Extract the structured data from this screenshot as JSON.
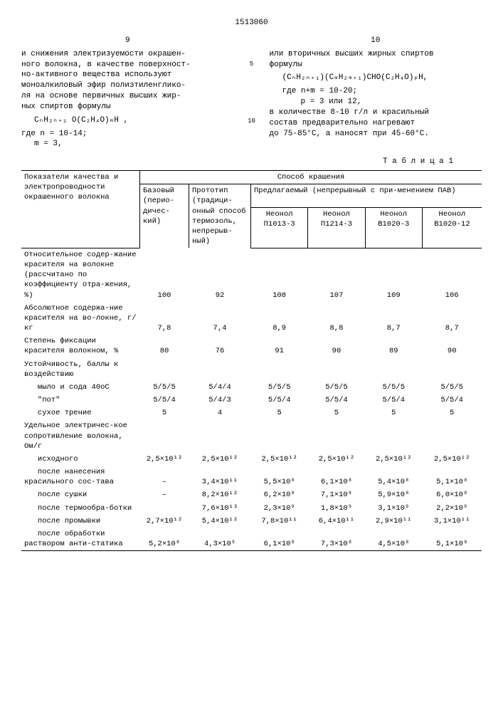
{
  "doc_number": "1513060",
  "left_colnum": "9",
  "right_colnum": "10",
  "marker5": "5",
  "marker10": "10",
  "left_text": {
    "p1": "и снижения электризуемости окрашен-",
    "p2": "ного волокна, в качестве поверхност-",
    "p3": "но-активного вещества используют",
    "p4": "моноалкиловый эфир полиэтиленглико-",
    "p5": "ля на основе первичных высших жир-",
    "p6": "ных спиртов формулы",
    "formula": "CₙH₂ₙ₊₁ O(C₂H₄O)ₘH ,",
    "where1": "где n = 10-14;",
    "where2": "m = 3,"
  },
  "right_text": {
    "p1": "или вторичных высших жирных спиртов",
    "p2": "формулы",
    "formula": "(CₙH₂ₙ₊₁)(CₘH₂ₘ₊₁)CHO(C₂H₄O)ₚH,",
    "where1": "где n+m = 10-20;",
    "where2": "p = 3 или 12,",
    "p3": "в количестве 8-10 г/л и красильный",
    "p4": "состав предварительно нагревают",
    "p5": "до 75-85°C, а наносят при 45-60°C."
  },
  "table_caption": "Т а б л и ц а  1",
  "headers": {
    "param": "Показатели качества и электропроводности окрашенного волокна",
    "method": "Способ крашения",
    "base": "Базовый (перио-дичес-кий)",
    "proto": "Прототип (традици-онный способ термозоль, непрерыв-ный)",
    "proposed": "Предлагаемый (непрерывный с при-менением ПАВ)",
    "c1": "Неонол П1013-3",
    "c2": "Неонол П1214-3",
    "c3": "Неонол В1020-3",
    "c4": "Неонол В1020-12"
  },
  "rows": [
    {
      "label": "Относительное содер-жание красителя на волокне (рассчитано по коэффициенту отра-жения, %)",
      "v": [
        "100",
        "92",
        "108",
        "107",
        "109",
        "106"
      ]
    },
    {
      "label": "Абсолютное содержа-ние красителя на во-локне, г/кг",
      "v": [
        "7,8",
        "7,4",
        "8,9",
        "8,8",
        "8,7",
        "8,7"
      ]
    },
    {
      "label": "Степень фиксации красителя волокном, %",
      "v": [
        "80",
        "76",
        "91",
        "90",
        "89",
        "90"
      ]
    },
    {
      "label": "Устойчивость, баллы к воздействию",
      "v": [
        "",
        "",
        "",
        "",
        "",
        ""
      ]
    },
    {
      "label": "   мыло и сода 40оС",
      "v": [
        "5/5/5",
        "5/4/4",
        "5/5/5",
        "5/5/5",
        "5/5/5",
        "5/5/5"
      ]
    },
    {
      "label": "   \"пот\"",
      "v": [
        "5/5/4",
        "5/4/3",
        "5/5/4",
        "5/5/4",
        "5/5/4",
        "5/5/4"
      ]
    },
    {
      "label": "   сухое трение",
      "v": [
        "5",
        "4",
        "5",
        "5",
        "5",
        "5"
      ]
    },
    {
      "label": "Удельное электричес-кое сопротивление волокна, Ом/г",
      "v": [
        "",
        "",
        "",
        "",
        "",
        ""
      ]
    },
    {
      "label": "   исходного",
      "v": [
        "2,5×10¹²",
        "2,5×10¹²",
        "2,5×10¹²",
        "2,5×10¹²",
        "2,5×10¹²",
        "2,5×10¹²"
      ]
    },
    {
      "label": "   после нанесения красильного сос-тава",
      "v": [
        "–",
        "3,4×10¹¹",
        "5,5×10⁸",
        "6,1×10⁸",
        "5,4×10⁸",
        "5,1×10⁸"
      ]
    },
    {
      "label": "   после сушки",
      "v": [
        "–",
        "8,2×10¹²",
        "6,2×10⁸",
        "7,1×10⁸",
        "5,9×10⁸",
        "6,0×10⁸"
      ]
    },
    {
      "label": "   после термообра-ботки",
      "v": [
        "",
        "7,6×10¹³",
        "2,3×10⁹",
        "1,8×10⁹",
        "3,1×10⁹",
        "2,2×10⁹"
      ]
    },
    {
      "label": "   после промывки",
      "v": [
        "2,7×10¹²",
        "5,4×10¹²",
        "7,8×10¹¹",
        "6,4×10¹¹",
        "2,9×10¹¹",
        "3,1×10¹¹"
      ]
    },
    {
      "label": "   после обработки раствором анти-статика",
      "v": [
        "5,2×10⁸",
        "4,3×10⁹",
        "6,1×10⁸",
        "7,3×10⁸",
        "4,5×10⁸",
        "5,1×10⁸"
      ]
    }
  ]
}
